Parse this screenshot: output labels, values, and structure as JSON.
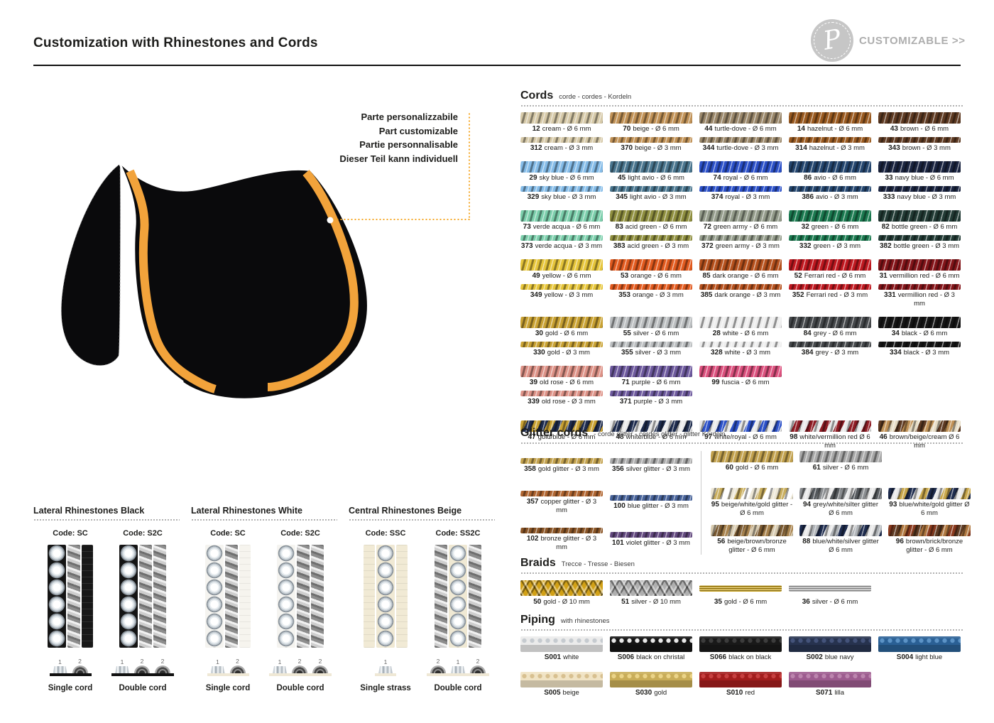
{
  "header": {
    "title": "Customization with Rhinestones and Cords",
    "logo_letter": "P",
    "customizable": "CUSTOMIZABLE >>"
  },
  "colors": {
    "trim_gold": "#F2A33B",
    "pad": "#0A0A0C",
    "piping_white": "#FFFFFF",
    "leader": "#F5A623"
  },
  "annotation": {
    "lines": [
      "Parte personalizzabile",
      "Part customizable",
      "Partie personnalisable",
      "Dieser Teil kann individuell"
    ]
  },
  "cords": {
    "title": "Cords",
    "subtitle": "corde - cordes - Kordeln",
    "pairs": [
      {
        "a": {
          "num": "12",
          "text": "cream - Ø 6 mm",
          "colors": [
            "#D6C9A8"
          ],
          "size": "6"
        },
        "b": {
          "num": "312",
          "text": "cream - Ø 3 mm",
          "colors": [
            "#D6C9A8"
          ],
          "size": "3"
        }
      },
      {
        "a": {
          "num": "70",
          "text": "beige - Ø 6 mm",
          "colors": [
            "#C19257"
          ],
          "size": "6"
        },
        "b": {
          "num": "370",
          "text": "beige - Ø 3 mm",
          "colors": [
            "#C19257"
          ],
          "size": "3"
        }
      },
      {
        "a": {
          "num": "44",
          "text": "turtle-dove - Ø 6 mm",
          "colors": [
            "#9A876A"
          ],
          "size": "6"
        },
        "b": {
          "num": "344",
          "text": "turtle-dove - Ø 3 mm",
          "colors": [
            "#9A876A"
          ],
          "size": "3"
        }
      },
      {
        "a": {
          "num": "14",
          "text": "hazelnut - Ø 6 mm",
          "colors": [
            "#9A5A20"
          ],
          "size": "6"
        },
        "b": {
          "num": "314",
          "text": "hazelnut - Ø 3 mm",
          "colors": [
            "#9A5A20"
          ],
          "size": "3"
        }
      },
      {
        "a": {
          "num": "43",
          "text": "brown - Ø 6 mm",
          "colors": [
            "#5E3A22"
          ],
          "size": "6"
        },
        "b": {
          "num": "343",
          "text": "brown - Ø 3 mm",
          "colors": [
            "#5E3A22"
          ],
          "size": "3"
        }
      },
      {
        "a": {
          "num": "29",
          "text": "sky blue - Ø 6 mm",
          "colors": [
            "#85BCE8"
          ],
          "size": "6"
        },
        "b": {
          "num": "329",
          "text": "sky blue - Ø 3 mm",
          "colors": [
            "#85BCE8"
          ],
          "size": "3"
        }
      },
      {
        "a": {
          "num": "45",
          "text": "light avio - Ø 6 mm",
          "colors": [
            "#4A768F"
          ],
          "size": "6"
        },
        "b": {
          "num": "345",
          "text": "light avio - Ø 3 mm",
          "colors": [
            "#4A768F"
          ],
          "size": "3"
        }
      },
      {
        "a": {
          "num": "74",
          "text": "royal - Ø 6 mm",
          "colors": [
            "#2B50C8"
          ],
          "size": "6"
        },
        "b": {
          "num": "374",
          "text": "royal - Ø 3 mm",
          "colors": [
            "#2B50C8"
          ],
          "size": "3"
        }
      },
      {
        "a": {
          "num": "86",
          "text": "avio - Ø 6 mm",
          "colors": [
            "#24466F"
          ],
          "size": "6"
        },
        "b": {
          "num": "386",
          "text": "avio - Ø 3 mm",
          "colors": [
            "#24466F"
          ],
          "size": "3"
        }
      },
      {
        "a": {
          "num": "33",
          "text": "navy blue - Ø 6 mm",
          "colors": [
            "#1A2440"
          ],
          "size": "6"
        },
        "b": {
          "num": "333",
          "text": "navy blue - Ø 3 mm",
          "colors": [
            "#1A2440"
          ],
          "size": "3"
        }
      },
      {
        "a": {
          "num": "73",
          "text": "verde acqua - Ø 6 mm",
          "colors": [
            "#7CCFAC"
          ],
          "size": "6"
        },
        "b": {
          "num": "373",
          "text": "verde acqua - Ø 3 mm",
          "colors": [
            "#7CCFAC"
          ],
          "size": "3"
        }
      },
      {
        "a": {
          "num": "83",
          "text": "acid green - Ø 6 mm",
          "colors": [
            "#8F8F3F"
          ],
          "size": "6"
        },
        "b": {
          "num": "383",
          "text": "acid green - Ø 3 mm",
          "colors": [
            "#8F8F3F"
          ],
          "size": "3"
        }
      },
      {
        "a": {
          "num": "72",
          "text": "green army - Ø 6 mm",
          "colors": [
            "#949C8B"
          ],
          "size": "6"
        },
        "b": {
          "num": "372",
          "text": "green army - Ø 3 mm",
          "colors": [
            "#949C8B"
          ],
          "size": "3"
        }
      },
      {
        "a": {
          "num": "32",
          "text": "green - Ø 6 mm",
          "colors": [
            "#1B7A50"
          ],
          "size": "6"
        },
        "b": {
          "num": "332",
          "text": "green - Ø 3 mm",
          "colors": [
            "#1B7A50"
          ],
          "size": "3"
        }
      },
      {
        "a": {
          "num": "82",
          "text": "bottle green - Ø 6 mm",
          "colors": [
            "#223B35"
          ],
          "size": "6"
        },
        "b": {
          "num": "382",
          "text": "bottle green - Ø 3 mm",
          "colors": [
            "#223B35"
          ],
          "size": "3"
        }
      },
      {
        "a": {
          "num": "49",
          "text": "yellow - Ø 6 mm",
          "colors": [
            "#E6C53A"
          ],
          "size": "6"
        },
        "b": {
          "num": "349",
          "text": "yellow - Ø 3 mm",
          "colors": [
            "#E6C53A"
          ],
          "size": "3"
        }
      },
      {
        "a": {
          "num": "53",
          "text": "orange - Ø 6 mm",
          "colors": [
            "#E25A1E"
          ],
          "size": "6"
        },
        "b": {
          "num": "353",
          "text": "orange - Ø 3 mm",
          "colors": [
            "#E25A1E"
          ],
          "size": "3"
        }
      },
      {
        "a": {
          "num": "85",
          "text": "dark orange - Ø 6 mm",
          "colors": [
            "#B5501C"
          ],
          "size": "6"
        },
        "b": {
          "num": "385",
          "text": "dark orange - Ø 3 mm",
          "colors": [
            "#B5501C"
          ],
          "size": "3"
        }
      },
      {
        "a": {
          "num": "52",
          "text": "Ferrari red - Ø 6 mm",
          "colors": [
            "#C01820"
          ],
          "size": "6"
        },
        "b": {
          "num": "352",
          "text": "Ferrari red - Ø 3 mm",
          "colors": [
            "#C01820"
          ],
          "size": "3"
        }
      },
      {
        "a": {
          "num": "31",
          "text": "vermillion red - Ø 6 mm",
          "colors": [
            "#841419"
          ],
          "size": "6"
        },
        "b": {
          "num": "331",
          "text": "vermillion red - Ø 3 mm",
          "colors": [
            "#841419"
          ],
          "size": "3"
        }
      },
      {
        "a": {
          "num": "30",
          "text": "gold - Ø 6 mm",
          "colors": [
            "#C9A233"
          ],
          "size": "6"
        },
        "b": {
          "num": "330",
          "text": "gold - Ø 3 mm",
          "colors": [
            "#C9A233"
          ],
          "size": "3"
        }
      },
      {
        "a": {
          "num": "55",
          "text": "silver - Ø 6 mm",
          "colors": [
            "#BBBEC0"
          ],
          "size": "6"
        },
        "b": {
          "num": "355",
          "text": "silver - Ø 3 mm",
          "colors": [
            "#BBBEC0"
          ],
          "size": "3"
        }
      },
      {
        "a": {
          "num": "28",
          "text": "white - Ø 6 mm",
          "colors": [
            "#EDEDED"
          ],
          "size": "6"
        },
        "b": {
          "num": "328",
          "text": "white - Ø 3 mm",
          "colors": [
            "#EDEDED"
          ],
          "size": "3"
        }
      },
      {
        "a": {
          "num": "84",
          "text": "grey - Ø 6 mm",
          "colors": [
            "#46494C"
          ],
          "size": "6"
        },
        "b": {
          "num": "384",
          "text": "grey -  Ø 3 mm",
          "colors": [
            "#46494C"
          ],
          "size": "3"
        }
      },
      {
        "a": {
          "num": "34",
          "text": "black -  Ø 6 mm",
          "colors": [
            "#161616"
          ],
          "size": "6"
        },
        "b": {
          "num": "334",
          "text": "black -  Ø 3 mm",
          "colors": [
            "#161616"
          ],
          "size": "3"
        }
      },
      {
        "a": {
          "num": "39",
          "text": "old rose -  Ø 6 mm",
          "colors": [
            "#DD9287"
          ],
          "size": "6"
        },
        "b": {
          "num": "339",
          "text": "old rose -  Ø 3 mm",
          "colors": [
            "#DD9287"
          ],
          "size": "3"
        }
      },
      {
        "a": {
          "num": "71",
          "text": "purple - Ø 6 mm",
          "colors": [
            "#6E5A9E"
          ],
          "size": "6"
        },
        "b": {
          "num": "371",
          "text": "purple - Ø 3 mm",
          "colors": [
            "#6E5A9E"
          ],
          "size": "3"
        }
      },
      {
        "a": {
          "num": "99",
          "text": "fuscia -  Ø 6 mm",
          "colors": [
            "#DC517E"
          ],
          "size": "6"
        }
      },
      {},
      {}
    ],
    "multis": [
      {
        "num": "47",
        "text": "gold/blue - Ø 6 mm",
        "colors": [
          "#C9A233",
          "#1E2C4E"
        ],
        "size": "6"
      },
      {
        "num": "48",
        "text": "white/blue - Ø 6 mm",
        "colors": [
          "#E9E9E9",
          "#1E2C4E"
        ],
        "size": "6"
      },
      {
        "num": "97",
        "text": "white/royal - Ø 6 mm",
        "colors": [
          "#E9E9E9",
          "#2B50C8"
        ],
        "size": "6"
      },
      {
        "num": "98",
        "text": "white/vermillion red Ø 6 mm",
        "colors": [
          "#E9E9E9",
          "#8E1C24"
        ],
        "size": "6"
      },
      {
        "num": "46",
        "text": "brown/beige/cream Ø 6 mm",
        "colors": [
          "#5E3A22",
          "#C19257",
          "#E7DDC5"
        ],
        "size": "6"
      }
    ]
  },
  "glitter": {
    "title": "Glitter cords",
    "subtitle": "- corde glitter - cordes glitter - glitter Kordeln",
    "left_items": [
      {
        "num": "358",
        "text": "gold glitter - Ø 3 mm",
        "colors": [
          "#C3A24E"
        ],
        "size": "3"
      },
      {
        "num": "356",
        "text": "silver glitter - Ø 3 mm",
        "colors": [
          "#ACACAC"
        ],
        "size": "3"
      },
      {
        "num": "357",
        "text": "copper glitter - Ø 3 mm",
        "colors": [
          "#B06530"
        ],
        "size": "3"
      },
      {
        "num": "100",
        "text": "blue glitter - Ø 3 mm",
        "colors": [
          "#48639A"
        ],
        "size": "3"
      },
      {
        "num": "102",
        "text": "bronze glitter - Ø 3 mm",
        "colors": [
          "#8A5526"
        ],
        "size": "3"
      },
      {
        "num": "101",
        "text": "violet glitter - Ø 3 mm",
        "colors": [
          "#62487E"
        ],
        "size": "3"
      }
    ],
    "right_items": [
      {
        "num": "60",
        "text": "gold - Ø 6 mm",
        "colors": [
          "#C2A14E"
        ],
        "size": "6"
      },
      {
        "num": "61",
        "text": "silver -  Ø 6 mm",
        "colors": [
          "#A8A8A8"
        ],
        "size": "6"
      },
      {},
      {
        "num": "95",
        "text": "beige/white/gold glitter - Ø 6 mm",
        "colors": [
          "#EDE7D6",
          "#C9AE5E",
          "#FFFFFF"
        ],
        "size": "6"
      },
      {
        "num": "94",
        "text": "grey/white/silter glitter Ø 6 mm",
        "colors": [
          "#8A8D90",
          "#E8E8E8",
          "#55595D"
        ],
        "size": "6"
      },
      {
        "num": "93",
        "text": "blue/white/gold glitter Ø 6 mm",
        "colors": [
          "#1E2C4E",
          "#E8E8E8",
          "#C9A84C"
        ],
        "size": "6"
      },
      {
        "num": "56",
        "text": "beige/brown/bronze glitter - Ø 6 mm",
        "colors": [
          "#D8CBB0",
          "#7A5A32",
          "#A8834E"
        ],
        "size": "6"
      },
      {
        "num": "88",
        "text": "blue/white/silver glitter Ø 6 mm",
        "colors": [
          "#1E2C4E",
          "#E8E8E8",
          "#B0B4B8"
        ],
        "size": "6"
      },
      {
        "num": "96",
        "text": "brown/brick/bronze glitter - Ø 6 mm",
        "colors": [
          "#8A3A1E",
          "#5E3A22",
          "#B07840"
        ],
        "size": "6"
      }
    ]
  },
  "braids": {
    "title": "Braids",
    "subtitle": "Trecce - Tresse - Biesen",
    "items": [
      {
        "num": "50",
        "text": "gold - Ø 10 mm",
        "color": "#D2A116",
        "type": "braid"
      },
      {
        "num": "51",
        "text": "silver - Ø 10 mm",
        "color": "#AFAFAF",
        "type": "braid"
      },
      {
        "num": "35",
        "text": "gold - Ø 6 mm",
        "color": "#C59F1E",
        "type": "flat"
      },
      {
        "num": "36",
        "text": "silver - Ø 6 mm",
        "color": "#B4B4B4",
        "type": "flat"
      }
    ]
  },
  "piping": {
    "title": "Piping",
    "subtitle": "with rhinestones",
    "row1": [
      {
        "code": "S001",
        "name": "white",
        "color": "#EBEBEB",
        "dot": "#C6CBD0",
        "type": "pipe"
      },
      {
        "code": "S006",
        "name": "black on christal",
        "color": "#141414",
        "dot": "#E9E9E9",
        "type": "pipe"
      },
      {
        "code": "S066",
        "name": "black on black",
        "color": "#191919",
        "dot": "#3C3C3C",
        "type": "pipe"
      },
      {
        "code": "S002",
        "name": "blue navy",
        "color": "#27334F",
        "dot": "#44537A",
        "type": "pipe"
      },
      {
        "code": "S004",
        "name": "light blue",
        "color": "#2A6095",
        "dot": "#5C93C6",
        "type": "pipe"
      }
    ],
    "row2": [
      {
        "code": "S005",
        "name": "beige",
        "color": "#F0E3C4",
        "dot": "#D8C090",
        "type": "pipe"
      },
      {
        "code": "S030",
        "name": "gold",
        "color": "#C9AD58",
        "dot": "#EBD488",
        "type": "pipe"
      },
      {
        "code": "S010",
        "name": "red",
        "color": "#A31D1D",
        "dot": "#C74040",
        "type": "pipe"
      },
      {
        "code": "S071",
        "name": "lilla",
        "color": "#9D5C8F",
        "dot": "#BC85AE",
        "type": "pipe"
      }
    ]
  },
  "rhinestones": {
    "sections": [
      {
        "title": "Lateral Rhinestones Black",
        "codes": [
          {
            "code": "Code: SC",
            "parts": [
              "gem-dark",
              "vcord",
              "quilt-dark"
            ],
            "label": "Single cord",
            "baseline": "#111111",
            "diagram": [
              {
                "n": "1",
                "icon": "strass"
              },
              {
                "n": "2",
                "icon": "arch"
              }
            ]
          },
          {
            "code": "Code: S2C",
            "parts": [
              "gem-dark",
              "vcord",
              "vcord"
            ],
            "label": "Double cord",
            "baseline": "#111111",
            "diagram": [
              {
                "n": "1",
                "icon": "strass"
              },
              {
                "n": "2",
                "icon": "arch"
              },
              {
                "n": "2",
                "icon": "arch"
              }
            ]
          }
        ]
      },
      {
        "title": "Lateral Rhinestones White",
        "codes": [
          {
            "code": "Code: SC",
            "parts": [
              "gem-light",
              "vcord",
              "quilt-light"
            ],
            "label": "Single cord",
            "baseline": "#EFE8D5",
            "diagram": [
              {
                "n": "1",
                "icon": "strass"
              },
              {
                "n": "2",
                "icon": "arch"
              }
            ]
          },
          {
            "code": "Code: S2C",
            "parts": [
              "gem-light",
              "vcord",
              "vcord"
            ],
            "label": "Double cord",
            "baseline": "#EFE8D5",
            "diagram": [
              {
                "n": "1",
                "icon": "strass"
              },
              {
                "n": "2",
                "icon": "arch"
              },
              {
                "n": "2",
                "icon": "arch"
              }
            ]
          }
        ]
      },
      {
        "title": "Central Rhinestones Beige",
        "codes": [
          {
            "code": "Code: SSC",
            "parts": [
              "quilt-beige",
              "gem-beige",
              "quilt-beige"
            ],
            "label": "Single strass",
            "baseline": "#EFE8D5",
            "diagram": [
              {
                "n": "1",
                "icon": "strass"
              }
            ]
          },
          {
            "code": "Code: SS2C",
            "parts": [
              "vcord",
              "gem-beige",
              "vcord"
            ],
            "label": "Double cord",
            "baseline": "#EFE8D5",
            "diagram": [
              {
                "n": "2",
                "icon": "arch"
              },
              {
                "n": "1",
                "icon": "strass"
              },
              {
                "n": "2",
                "icon": "arch"
              }
            ]
          }
        ]
      }
    ]
  }
}
